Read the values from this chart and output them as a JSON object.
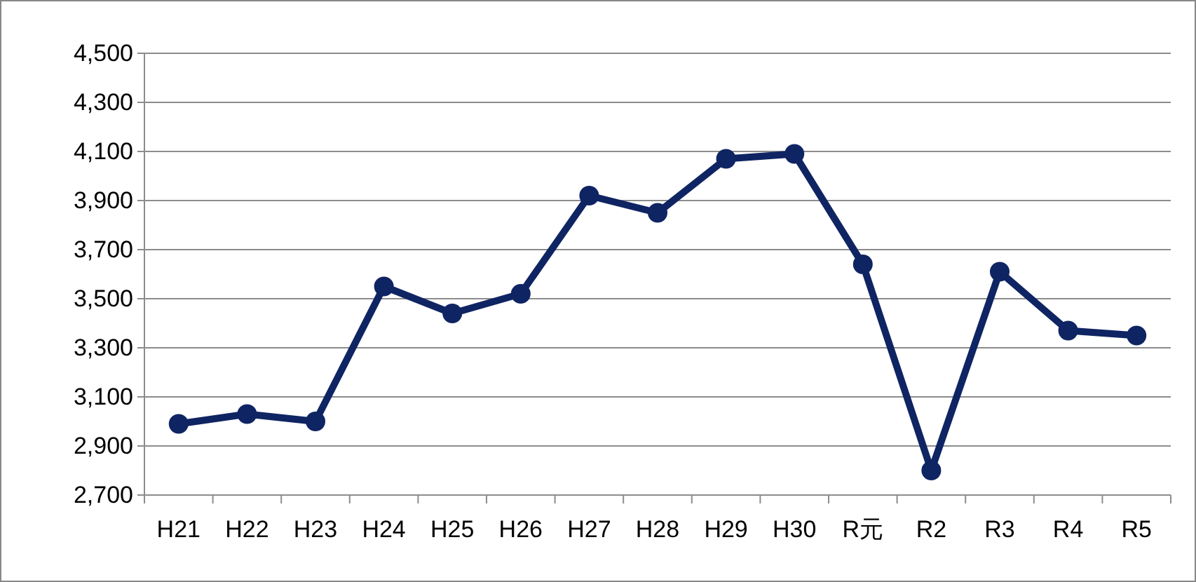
{
  "chart_data": {
    "type": "line",
    "categories": [
      "H21",
      "H22",
      "H23",
      "H24",
      "H25",
      "H26",
      "H27",
      "H28",
      "H29",
      "H30",
      "R元",
      "R2",
      "R3",
      "R4",
      "R5"
    ],
    "series": [
      {
        "color": "#0f2462",
        "values": [
          2990,
          3030,
          3000,
          3550,
          3440,
          3520,
          3920,
          3850,
          4070,
          4090,
          3640,
          2800,
          3610,
          3370,
          3350
        ]
      }
    ],
    "ylim": [
      2700,
      4500
    ],
    "yticks": [
      {
        "value": 2700,
        "label": "2,700"
      },
      {
        "value": 2900,
        "label": "2,900"
      },
      {
        "value": 3100,
        "label": "3,100"
      },
      {
        "value": 3300,
        "label": "3,300"
      },
      {
        "value": 3500,
        "label": "3,500"
      },
      {
        "value": 3700,
        "label": "3,700"
      },
      {
        "value": 3900,
        "label": "3,900"
      },
      {
        "value": 4100,
        "label": "4,100"
      },
      {
        "value": 4300,
        "label": "4,300"
      },
      {
        "value": 4500,
        "label": "4,500"
      }
    ],
    "grid": "y",
    "marker": "circle",
    "line_style": "solid"
  }
}
